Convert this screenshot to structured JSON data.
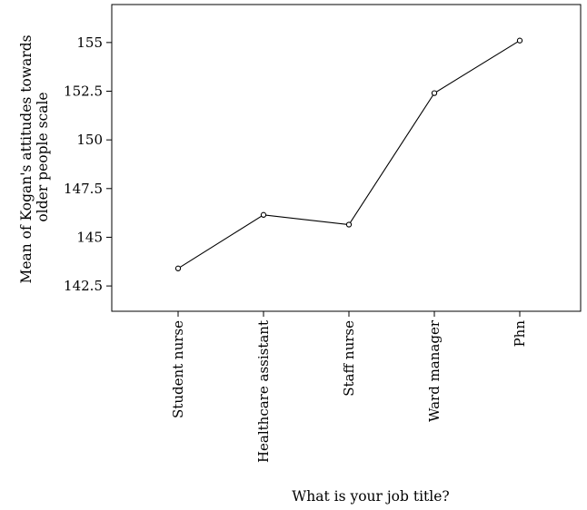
{
  "chart_data": {
    "type": "line",
    "title": "",
    "xlabel": "What is your job title?",
    "ylabel": [
      "Mean of Kogan's attitudes towards",
      "older people scale"
    ],
    "categories": [
      "Student nurse",
      "Healthcare assistant",
      "Staff nurse",
      "Ward manager",
      "Phn"
    ],
    "series": [
      {
        "values": [
          143.4,
          146.15,
          145.65,
          152.4,
          155.1
        ]
      }
    ],
    "yticks": [
      142.5,
      145,
      147.5,
      150,
      152.5,
      155
    ],
    "ytick_labels": [
      "142.5",
      "145",
      "147.5",
      "150",
      "152.5",
      "155"
    ],
    "ylim": [
      141.2,
      156.95
    ],
    "grid": false,
    "legend": "none",
    "colors": {
      "line": "#000000",
      "marker_fill": "#ffffff",
      "axis": "#000000"
    }
  }
}
